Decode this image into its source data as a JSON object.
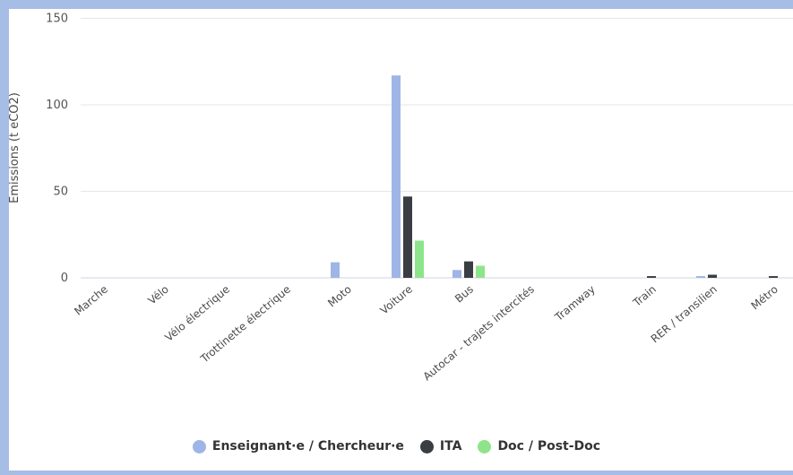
{
  "chart_data": {
    "type": "bar",
    "categories": [
      "Marche",
      "Vélo",
      "Vélo électrique",
      "Trottinette électrique",
      "Moto",
      "Voiture",
      "Bus",
      "Autocar - trajets intercités",
      "Tramway",
      "Train",
      "RER / transilien",
      "Métro"
    ],
    "series": [
      {
        "name": "Enseignant·e / Chercheur·e",
        "color": "#9fb5e6",
        "values": [
          0,
          0,
          0,
          0,
          9,
          117,
          4.5,
          0,
          0,
          0,
          1,
          0
        ]
      },
      {
        "name": "ITA",
        "color": "#3a3d42",
        "values": [
          0,
          0,
          0,
          0,
          0,
          47,
          9.5,
          0,
          0,
          1,
          1.8,
          1
        ]
      },
      {
        "name": "Doc / Post-Doc",
        "color": "#8ee48a",
        "values": [
          0,
          0,
          0,
          0,
          0,
          21.5,
          7,
          0,
          0,
          0,
          0,
          0
        ]
      }
    ],
    "ylabel": "Emissions (t eCO2)",
    "yticks": [
      0,
      50,
      100,
      150
    ],
    "ylim": [
      0,
      150
    ],
    "grid": true,
    "legend_position": "bottom"
  }
}
